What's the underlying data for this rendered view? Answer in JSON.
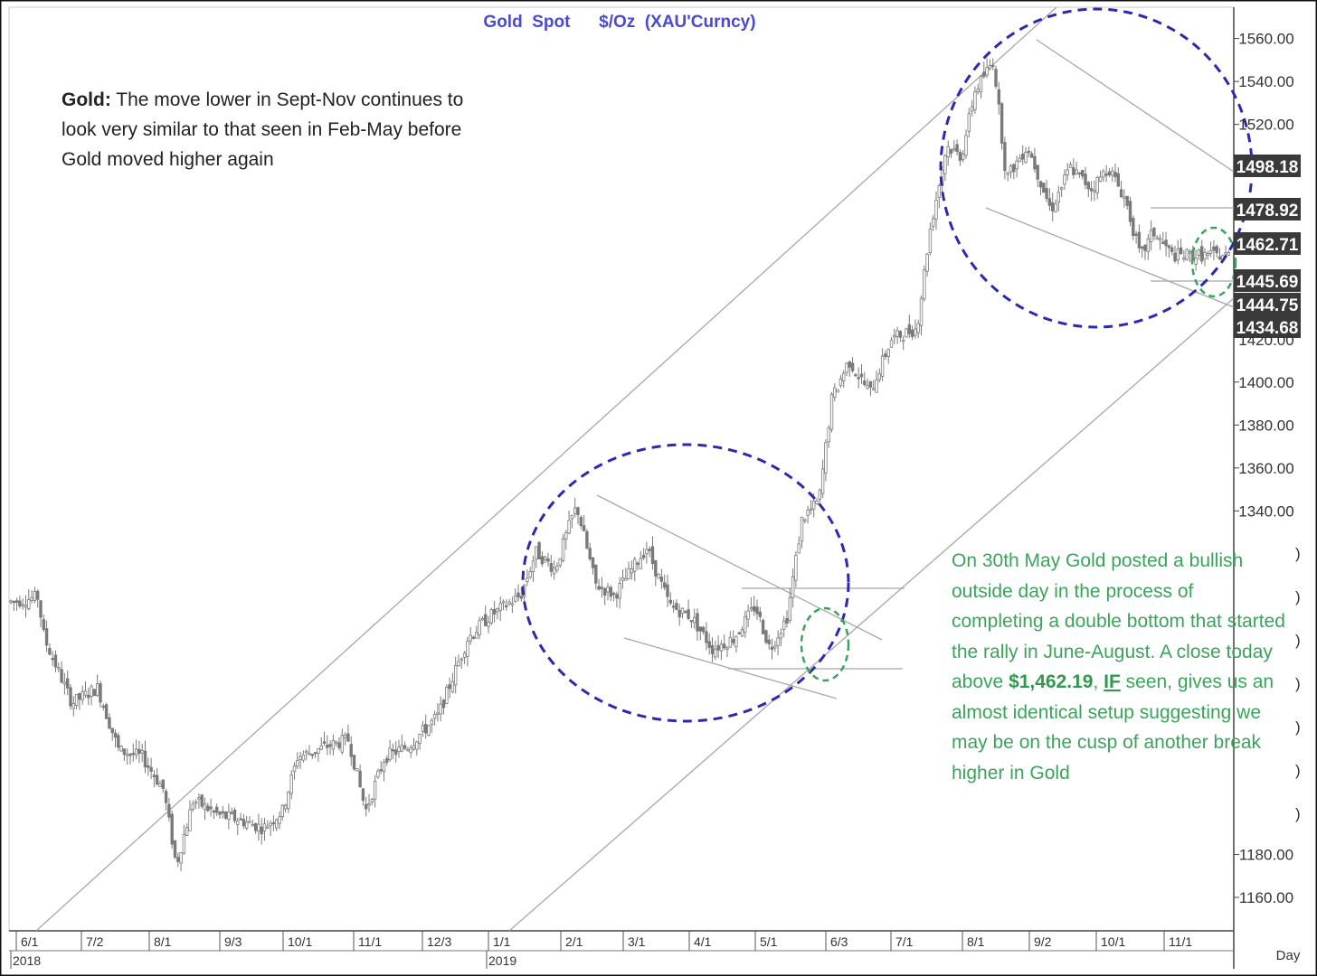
{
  "chart_data": {
    "type": "candlestick",
    "title": "Gold  Spot      $/Oz  (XAU'Curncy)",
    "period_label": "Day",
    "y_tick_labels": [
      "1560.00",
      "1540.00",
      "1520.00",
      "1400.00",
      "1380.00",
      "1360.00",
      "1340.00",
      "1180.00",
      "1160.00"
    ],
    "y_ticks": [
      1560,
      1540,
      1520,
      1400,
      1380,
      1360,
      1340,
      1180,
      1160
    ],
    "price_tags": [
      "1498.18",
      "1478.92",
      "1462.71",
      "1445.69",
      "1444.75",
      "1434.68"
    ],
    "price_tag_values": [
      1498.18,
      1478.92,
      1462.71,
      1445.69,
      1444.75,
      1434.68
    ],
    "x_tick_labels": [
      "6/1",
      "7/2",
      "8/1",
      "9/3",
      "10/1",
      "11/1",
      "12/3",
      "1/1",
      "2/1",
      "3/1",
      "4/1",
      "5/1",
      "6/3",
      "7/1",
      "8/1",
      "9/2",
      "10/1",
      "11/1"
    ],
    "year_labels": [
      "2018",
      "2019"
    ],
    "price_path": [
      [
        "2018-06-01",
        1297
      ],
      [
        "2018-06-12",
        1299
      ],
      [
        "2018-06-15",
        1280
      ],
      [
        "2018-06-28",
        1250
      ],
      [
        "2018-07-10",
        1257
      ],
      [
        "2018-07-20",
        1228
      ],
      [
        "2018-07-31",
        1225
      ],
      [
        "2018-08-10",
        1210
      ],
      [
        "2018-08-16",
        1175
      ],
      [
        "2018-08-24",
        1205
      ],
      [
        "2018-09-05",
        1198
      ],
      [
        "2018-09-14",
        1196
      ],
      [
        "2018-09-26",
        1192
      ],
      [
        "2018-10-05",
        1200
      ],
      [
        "2018-10-12",
        1225
      ],
      [
        "2018-10-26",
        1230
      ],
      [
        "2018-11-05",
        1233
      ],
      [
        "2018-11-13",
        1200
      ],
      [
        "2018-11-22",
        1225
      ],
      [
        "2018-12-03",
        1230
      ],
      [
        "2018-12-17",
        1244
      ],
      [
        "2018-12-31",
        1280
      ],
      [
        "2019-01-10",
        1290
      ],
      [
        "2019-01-25",
        1300
      ],
      [
        "2019-02-01",
        1320
      ],
      [
        "2019-02-10",
        1312
      ],
      [
        "2019-02-20",
        1342
      ],
      [
        "2019-03-01",
        1305
      ],
      [
        "2019-03-10",
        1300
      ],
      [
        "2019-03-25",
        1322
      ],
      [
        "2019-04-05",
        1295
      ],
      [
        "2019-04-15",
        1290
      ],
      [
        "2019-04-25",
        1275
      ],
      [
        "2019-05-05",
        1280
      ],
      [
        "2019-05-15",
        1295
      ],
      [
        "2019-05-22",
        1275
      ],
      [
        "2019-05-30",
        1290
      ],
      [
        "2019-06-06",
        1335
      ],
      [
        "2019-06-14",
        1345
      ],
      [
        "2019-06-20",
        1392
      ],
      [
        "2019-06-28",
        1410
      ],
      [
        "2019-07-08",
        1395
      ],
      [
        "2019-07-18",
        1420
      ],
      [
        "2019-07-30",
        1425
      ],
      [
        "2019-08-05",
        1470
      ],
      [
        "2019-08-13",
        1510
      ],
      [
        "2019-08-20",
        1505
      ],
      [
        "2019-08-26",
        1535
      ],
      [
        "2019-09-04",
        1550
      ],
      [
        "2019-09-10",
        1495
      ],
      [
        "2019-09-20",
        1510
      ],
      [
        "2019-10-01",
        1480
      ],
      [
        "2019-10-10",
        1500
      ],
      [
        "2019-10-20",
        1490
      ],
      [
        "2019-10-28",
        1500
      ],
      [
        "2019-11-05",
        1485
      ],
      [
        "2019-11-12",
        1458
      ],
      [
        "2019-11-18",
        1470
      ],
      [
        "2019-11-22",
        1465
      ],
      [
        "2019-11-27",
        1459
      ]
    ]
  },
  "annotations": {
    "left_title": "Gold:",
    "left_text": " The move lower in Sept-Nov continues to look very similar to that seen in Feb-May before Gold moved higher again",
    "right_part1": "On 30th May Gold posted a bullish outside day in the process of completing a double bottom that started the rally in June-August. A close today above ",
    "right_price": "$1,462.19",
    "right_part2": ", ",
    "right_if": "IF",
    "right_part3": " seen, gives us an almost identical setup suggesting we may be on the cusp of another break higher in Gold"
  },
  "colors": {
    "candles": "#7a7a7a",
    "trendlines": "#a8a8a8",
    "blue_circle": "#2a2ab0",
    "green_circle": "#3aa45a",
    "title": "#4a4ad0",
    "tag_bg": "#3a3a3a",
    "green_text": "#3aa45a"
  }
}
